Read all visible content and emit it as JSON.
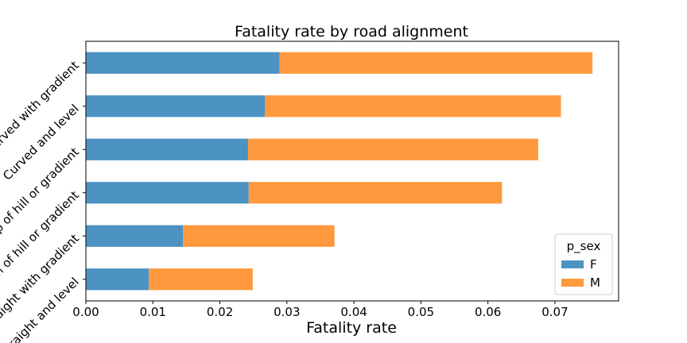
{
  "chart_data": {
    "type": "bar",
    "orientation": "horizontal",
    "stacked": true,
    "title": "Fatality rate by road alignment",
    "xlabel": "Fatality rate",
    "ylabel": "",
    "xlim": [
      0,
      0.0795
    ],
    "xticks": [
      0.0,
      0.01,
      0.02,
      0.03,
      0.04,
      0.05,
      0.06,
      0.07
    ],
    "xtick_labels": [
      "0.00",
      "0.01",
      "0.02",
      "0.03",
      "0.04",
      "0.05",
      "0.06",
      "0.07"
    ],
    "categories": [
      "Curved with gradient",
      "Curved and level",
      "Top of hill or gradient",
      "Bottom of hill or gradient",
      "Straight with gradient",
      "Straight and level"
    ],
    "series": [
      {
        "name": "F",
        "color": "#4c92c3",
        "values": [
          0.0289,
          0.0267,
          0.0242,
          0.0243,
          0.0145,
          0.0094
        ]
      },
      {
        "name": "M",
        "color": "#ff993e",
        "values": [
          0.0467,
          0.0442,
          0.0433,
          0.0378,
          0.0226,
          0.0155
        ]
      }
    ],
    "legend": {
      "title": "p_sex",
      "placement": "bottom-right"
    },
    "grid": false
  }
}
